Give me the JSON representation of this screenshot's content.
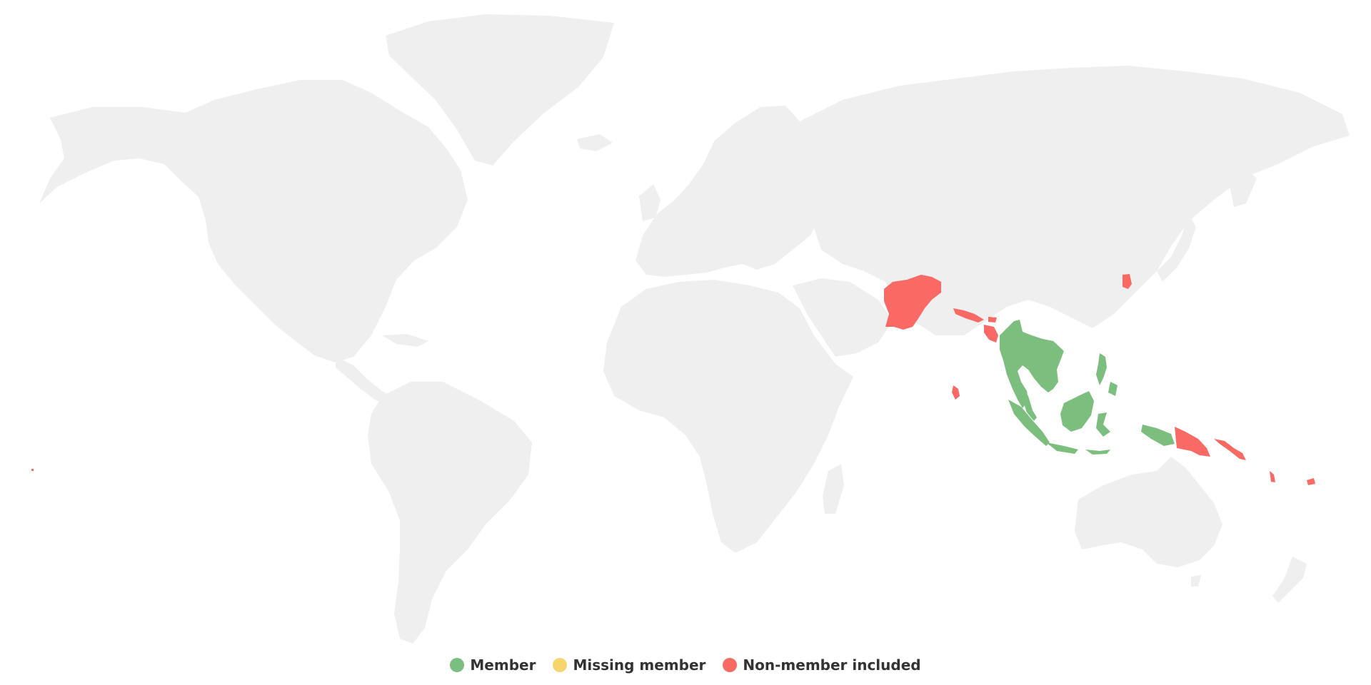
{
  "colors": {
    "land": "#efefef",
    "member": "#7bbe7d",
    "missing_member": "#f6d66c",
    "non_member": "#f96a65"
  },
  "legend": [
    {
      "label": "Member",
      "color": "#7bbe7d"
    },
    {
      "label": "Missing member",
      "color": "#f6d66c"
    },
    {
      "label": "Non-member included",
      "color": "#f96a65"
    }
  ]
}
